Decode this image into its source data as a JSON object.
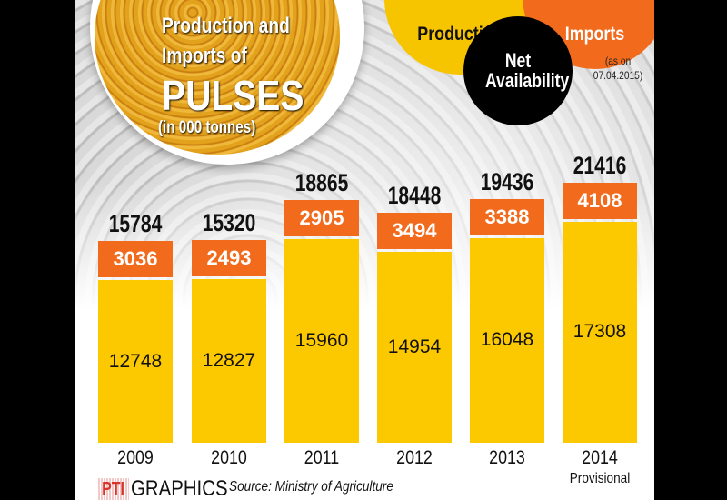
{
  "chart_data": {
    "type": "bar",
    "stacked": true,
    "title": "Production and Imports of PULSES",
    "title_lines": [
      "Production and",
      "Imports of",
      "PULSES"
    ],
    "unit": "(in 000 tonnes)",
    "legend": {
      "production": "Production",
      "imports": "Imports",
      "net": "Net Availability",
      "placement": "top-right"
    },
    "as_on": [
      "(as on",
      "07.04.2015)"
    ],
    "categories": [
      "2009",
      "2010",
      "2011",
      "2012",
      "2013",
      "2014"
    ],
    "category_notes": [
      "",
      "",
      "",
      "",
      "",
      "Provisional"
    ],
    "series": [
      {
        "name": "Production",
        "color": "#fcc800",
        "values": [
          12748,
          12827,
          15960,
          14954,
          16048,
          17308
        ]
      },
      {
        "name": "Imports",
        "color": "#f26b1d",
        "values": [
          3036,
          2493,
          2905,
          3494,
          3388,
          4108
        ]
      }
    ],
    "totals": [
      15784,
      15320,
      18865,
      18448,
      19436,
      21416
    ],
    "grid": false
  },
  "footer": {
    "brand": "PTI",
    "graphics": "GRAPHICS",
    "source": "Source: Ministry of Agriculture"
  }
}
